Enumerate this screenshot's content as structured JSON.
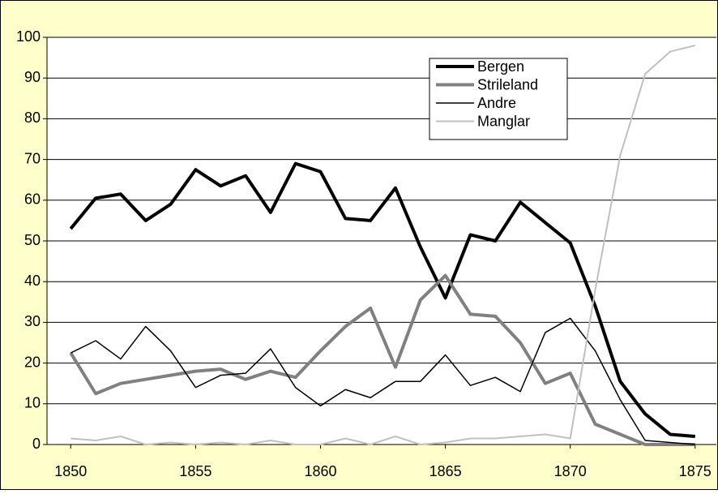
{
  "chart_data": {
    "type": "line",
    "x": [
      1850,
      1851,
      1852,
      1853,
      1854,
      1855,
      1856,
      1857,
      1858,
      1859,
      1860,
      1861,
      1862,
      1863,
      1864,
      1865,
      1866,
      1867,
      1868,
      1869,
      1870,
      1871,
      1872,
      1873,
      1874,
      1875
    ],
    "series": [
      {
        "name": "Bergen",
        "color": "#000000",
        "width": 4,
        "values": [
          53,
          60.5,
          61.5,
          55,
          59,
          67.5,
          63.5,
          66,
          57,
          69,
          67,
          55.5,
          55,
          63,
          48.5,
          36,
          51.5,
          50,
          59.5,
          54.5,
          49.5,
          34,
          15.5,
          7.5,
          2.5,
          2
        ]
      },
      {
        "name": "Strileland",
        "color": "#808080",
        "width": 4,
        "values": [
          22.5,
          12.5,
          15,
          16,
          17,
          18,
          18.5,
          16,
          18,
          16.5,
          23,
          29,
          33.5,
          19,
          35.5,
          41.5,
          32,
          31.5,
          25,
          15,
          17.5,
          5,
          2.5,
          0,
          0,
          0
        ]
      },
      {
        "name": "Andre",
        "color": "#000000",
        "width": 1.5,
        "values": [
          22.5,
          25.5,
          21,
          29,
          23,
          14,
          17,
          17.5,
          23.5,
          14,
          9.5,
          13.5,
          11.5,
          15.5,
          15.5,
          22,
          14.5,
          16.5,
          13,
          27.5,
          31,
          23,
          11,
          1,
          0.5,
          0
        ]
      },
      {
        "name": "Manglar",
        "color": "#c0c0c0",
        "width": 2,
        "values": [
          1.5,
          1,
          2,
          0,
          0.5,
          0,
          0.5,
          0,
          1,
          0,
          0,
          1.5,
          0,
          2,
          0,
          0.5,
          1.5,
          1.5,
          2,
          2.5,
          1.5,
          38,
          71,
          91,
          96.5,
          98
        ]
      }
    ],
    "xlim": [
      1849.05,
      1875.85
    ],
    "xticks": [
      1850,
      1855,
      1860,
      1865,
      1870,
      1875
    ],
    "ylim": [
      0,
      100
    ],
    "yticks": [
      0,
      10,
      20,
      30,
      40,
      50,
      60,
      70,
      80,
      90,
      100
    ],
    "grid": true,
    "legend": "top-right"
  }
}
